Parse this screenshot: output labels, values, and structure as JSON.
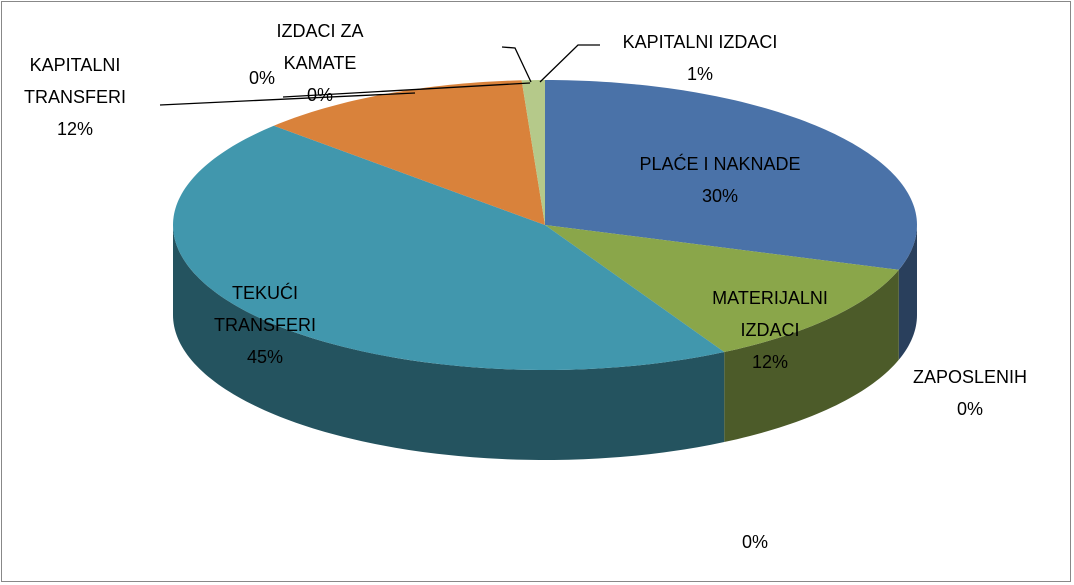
{
  "chart_data": {
    "type": "pie",
    "categories": [
      "PLAĆE I NAKNADE",
      "MATERIJALNI IZDACI",
      "ZAPOSLENIH",
      null,
      "TEKUĆI TRANSFERI",
      "KAPITALNI TRANSFERI",
      "IZDACI ZA KAMATE",
      null,
      "KAPITALNI IZDACI"
    ],
    "values": [
      30,
      12,
      0,
      0,
      45,
      12,
      0,
      0,
      1
    ],
    "value_labels": [
      "30%",
      "12%",
      "0%",
      "0%",
      "45%",
      "12%",
      "0%",
      "0%",
      "1%"
    ],
    "colors": [
      "#4a72a8",
      "#8aa64a",
      "#7f6aa0",
      "#3c9fb8",
      "#4197ad",
      "#d9823b",
      "#5a7fc0",
      "#b04a48",
      "#b5c98a"
    ]
  }
}
